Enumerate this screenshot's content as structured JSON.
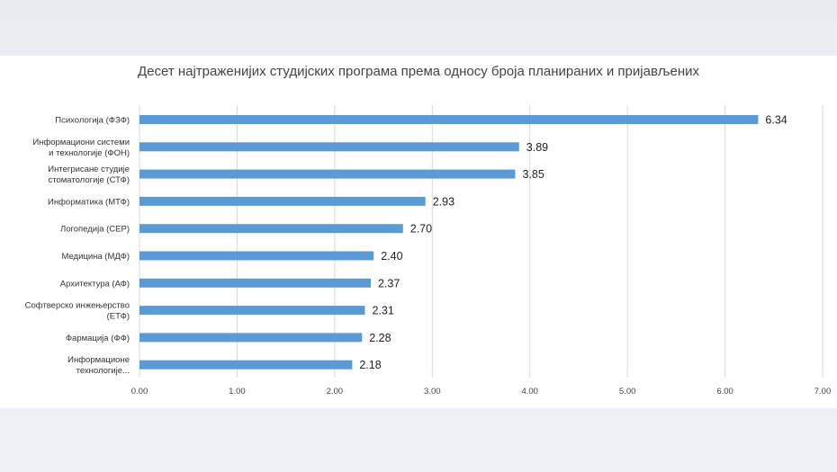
{
  "chart_data": {
    "type": "bar",
    "orientation": "horizontal",
    "title": "Десет најтраженијих студијских програма према односу броја планираних и пријављених",
    "categories": [
      [
        "Психологија (ФЗФ)"
      ],
      [
        "Информациони системи",
        "и технологије (ФОН)"
      ],
      [
        "Интегрисане студије",
        "стоматологије (СТФ)"
      ],
      [
        "Информатика (МТФ)"
      ],
      [
        "Логопедија (СЕР)"
      ],
      [
        "Медицина (МДФ)"
      ],
      [
        "Архитектура (АФ)"
      ],
      [
        "Софтверско инжењерство",
        "(ЕТФ)"
      ],
      [
        "Фармација (ФФ)"
      ],
      [
        "Информационе",
        "технологије..."
      ]
    ],
    "values": [
      6.34,
      3.89,
      3.85,
      2.93,
      2.7,
      2.4,
      2.37,
      2.31,
      2.28,
      2.18
    ],
    "data_labels": [
      "6.34",
      "3.89",
      "3.85",
      "2.93",
      "2.70",
      "2.40",
      "2.37",
      "2.31",
      "2.28",
      "2.18"
    ],
    "xlim": [
      0,
      7
    ],
    "x_ticks": [
      "0.00",
      "1.00",
      "2.00",
      "3.00",
      "4.00",
      "5.00",
      "6.00",
      "7.00"
    ],
    "grid": "vertical",
    "bar_color": "#5b9bd5"
  }
}
